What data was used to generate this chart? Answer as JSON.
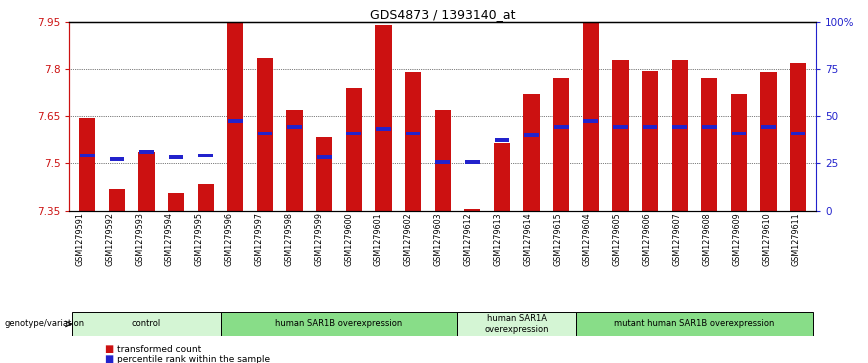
{
  "title": "GDS4873 / 1393140_at",
  "samples": [
    "GSM1279591",
    "GSM1279592",
    "GSM1279593",
    "GSM1279594",
    "GSM1279595",
    "GSM1279596",
    "GSM1279597",
    "GSM1279598",
    "GSM1279599",
    "GSM1279600",
    "GSM1279601",
    "GSM1279602",
    "GSM1279603",
    "GSM1279612",
    "GSM1279613",
    "GSM1279614",
    "GSM1279615",
    "GSM1279604",
    "GSM1279605",
    "GSM1279606",
    "GSM1279607",
    "GSM1279608",
    "GSM1279609",
    "GSM1279610",
    "GSM1279611"
  ],
  "red_values": [
    7.645,
    7.42,
    7.535,
    7.405,
    7.435,
    7.955,
    7.835,
    7.67,
    7.585,
    7.74,
    7.94,
    7.79,
    7.67,
    7.355,
    7.565,
    7.72,
    7.77,
    7.955,
    7.83,
    7.795,
    7.83,
    7.77,
    7.72,
    7.79,
    7.82
  ],
  "blue_values": [
    7.525,
    7.515,
    7.535,
    7.52,
    7.525,
    7.635,
    7.595,
    7.615,
    7.52,
    7.595,
    7.61,
    7.595,
    7.505,
    7.505,
    7.575,
    7.59,
    7.615,
    7.635,
    7.615,
    7.615,
    7.615,
    7.615,
    7.595,
    7.615,
    7.595
  ],
  "groups": [
    {
      "label": "control",
      "start": 0,
      "end": 5,
      "color": "#d4f5d4"
    },
    {
      "label": "human SAR1B overexpression",
      "start": 5,
      "end": 13,
      "color": "#88dd88"
    },
    {
      "label": "human SAR1A\noverexpression",
      "start": 13,
      "end": 17,
      "color": "#d4f5d4"
    },
    {
      "label": "mutant human SAR1B overexpression",
      "start": 17,
      "end": 25,
      "color": "#88dd88"
    }
  ],
  "ymin": 7.35,
  "ymax": 7.95,
  "yticks": [
    7.35,
    7.5,
    7.65,
    7.8,
    7.95
  ],
  "ytick_labels": [
    "7.35",
    "7.5",
    "7.65",
    "7.8",
    "7.95"
  ],
  "y2ticks": [
    0,
    25,
    50,
    75,
    100
  ],
  "y2tick_labels": [
    "0",
    "25",
    "50",
    "75",
    "100%"
  ],
  "bar_color": "#cc1111",
  "blue_color": "#2222cc",
  "bar_width": 0.55,
  "bg_color": "#ffffff",
  "plot_bg_color": "#ffffff",
  "ylabel_color_left": "#cc1111",
  "ylabel_color_right": "#2222cc",
  "legend_label_red": "transformed count",
  "legend_label_blue": "percentile rank within the sample",
  "genotype_label": "genotype/variation"
}
